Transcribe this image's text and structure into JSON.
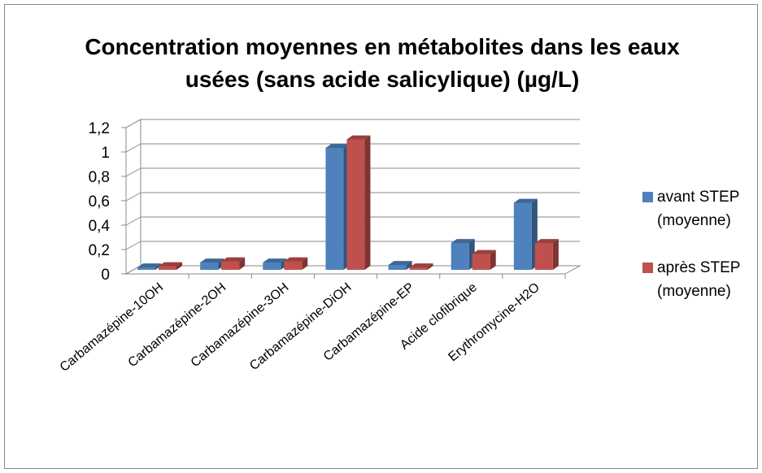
{
  "chart_data": {
    "type": "bar3d",
    "title": "Concentration moyennes en métabolites dans les eaux usées (sans acide salicylique) (µg/L)",
    "categories": [
      "Carbamazépine-10OH",
      "Carbamazépine-2OH",
      "Carbamazépine-3OH",
      "Carbamazépine-DiOH",
      "Carbamazépine-EP",
      "Acide clofibrique",
      "Erythromycine-H2O"
    ],
    "series": [
      {
        "name": "avant STEP (moyenne)",
        "color": "#4f81bd",
        "values": [
          0.02,
          0.06,
          0.06,
          1.0,
          0.04,
          0.22,
          0.55
        ]
      },
      {
        "name": "après STEP (moyenne)",
        "color": "#c0504d",
        "values": [
          0.03,
          0.07,
          0.07,
          1.07,
          0.02,
          0.13,
          0.22
        ]
      }
    ],
    "ylim": [
      0,
      1.2
    ],
    "yticks": [
      0,
      {
        "value": 0.2,
        "label": "0,2"
      },
      {
        "value": 0.4,
        "label": "0,4"
      },
      {
        "value": 0.6,
        "label": "0,6"
      },
      {
        "value": 0.8,
        "label": "0,8"
      },
      1,
      {
        "value": 1.2,
        "label": "1,2"
      }
    ],
    "grid": true,
    "legend": "right"
  }
}
